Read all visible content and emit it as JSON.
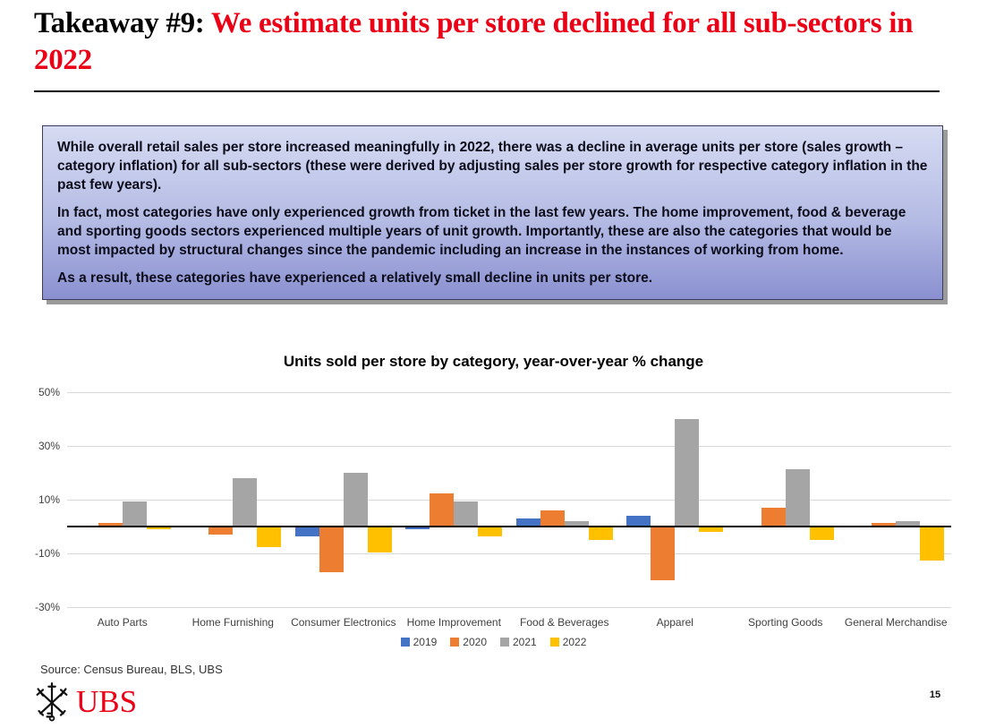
{
  "slide": {
    "title_prefix": "Takeaway #9: ",
    "title_emphasis": "We estimate units per store declined for all sub-sectors in 2022",
    "source": "Source: Census Bureau, BLS, UBS",
    "logo_text": "UBS",
    "page_number": "15",
    "accent_red": "#EC0016"
  },
  "callout": {
    "paragraphs": [
      "While overall retail sales per store increased meaningfully in 2022, there was a decline in average units per store (sales growth – category inflation) for all sub-sectors (these were derived by adjusting sales per store growth for respective category inflation in the past few years).",
      "In fact, most categories have only experienced growth from ticket in the last few years. The home improvement, food & beverage and sporting goods sectors experienced multiple years of unit growth. Importantly, these are also the categories that would be most impacted by structural changes since the pandemic including an increase in the instances of working from home.",
      "As a result, these categories have experienced a relatively small decline in units per store."
    ]
  },
  "chart_data": {
    "type": "bar",
    "title": "Units sold per store by category, year-over-year % change",
    "categories": [
      "Auto Parts",
      "Home Furnishing",
      "Consumer Electronics",
      "Home Improvement",
      "Food & Beverages",
      "Apparel",
      "Sporting Goods",
      "General Merchandise"
    ],
    "series": [
      {
        "name": "2019",
        "color": "#4472C4",
        "values": [
          0.5,
          0,
          -3.5,
          -1,
          3,
          4,
          0.5,
          0.5
        ]
      },
      {
        "name": "2020",
        "color": "#ED7D31",
        "values": [
          1.5,
          -3,
          -17,
          12.5,
          6,
          -20,
          7,
          1.5
        ]
      },
      {
        "name": "2021",
        "color": "#A5A5A5",
        "values": [
          9.5,
          18,
          20,
          9.5,
          2,
          40,
          21.5,
          2
        ]
      },
      {
        "name": "2022",
        "color": "#FFC000",
        "values": [
          -1,
          -7.5,
          -9.5,
          -3.5,
          -5,
          -2,
          -5,
          -12.5
        ]
      }
    ],
    "xlabel": "",
    "ylabel": "",
    "ylim": [
      -30,
      50
    ],
    "yticks_labels": [
      "50%",
      "30%",
      "10%",
      "-10%",
      "-30%"
    ],
    "yticks_values": [
      50,
      30,
      10,
      -10,
      -30
    ],
    "grid": true,
    "legend_position": "bottom"
  }
}
